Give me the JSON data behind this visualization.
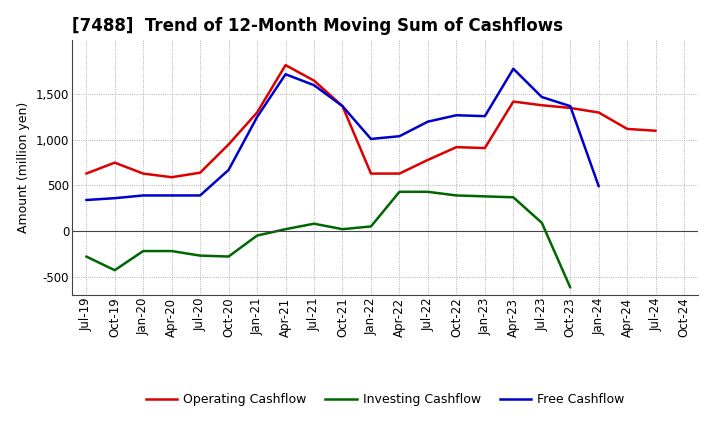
{
  "title": "[7488]  Trend of 12-Month Moving Sum of Cashflows",
  "ylabel": "Amount (million yen)",
  "x_labels": [
    "Jul-19",
    "Oct-19",
    "Jan-20",
    "Apr-20",
    "Jul-20",
    "Oct-20",
    "Jan-21",
    "Apr-21",
    "Jul-21",
    "Oct-21",
    "Jan-22",
    "Apr-22",
    "Jul-22",
    "Oct-22",
    "Jan-23",
    "Apr-23",
    "Jul-23",
    "Oct-23",
    "Jan-24",
    "Apr-24",
    "Jul-24",
    "Oct-24"
  ],
  "operating": [
    630,
    750,
    630,
    590,
    640,
    950,
    1300,
    1820,
    1650,
    1370,
    630,
    630,
    780,
    920,
    910,
    1420,
    1380,
    1350,
    1300,
    1120,
    1100,
    null
  ],
  "investing": [
    -280,
    -430,
    -220,
    -220,
    -270,
    -280,
    -50,
    20,
    80,
    20,
    50,
    430,
    430,
    390,
    380,
    370,
    90,
    -620,
    null,
    null,
    null,
    null
  ],
  "free": [
    340,
    360,
    390,
    390,
    390,
    670,
    1250,
    1720,
    1600,
    1370,
    1010,
    1040,
    1200,
    1270,
    1260,
    1780,
    1470,
    1370,
    490,
    null,
    null,
    null
  ],
  "operating_color": "#dd0000",
  "investing_color": "#006600",
  "free_color": "#0000cc",
  "ylim": [
    -700,
    2100
  ],
  "yticks": [
    -500,
    0,
    500,
    1000,
    1500
  ],
  "background_color": "#ffffff",
  "grid_color": "#999999",
  "title_fontsize": 12,
  "label_fontsize": 9,
  "tick_fontsize": 8.5,
  "linewidth": 1.8
}
